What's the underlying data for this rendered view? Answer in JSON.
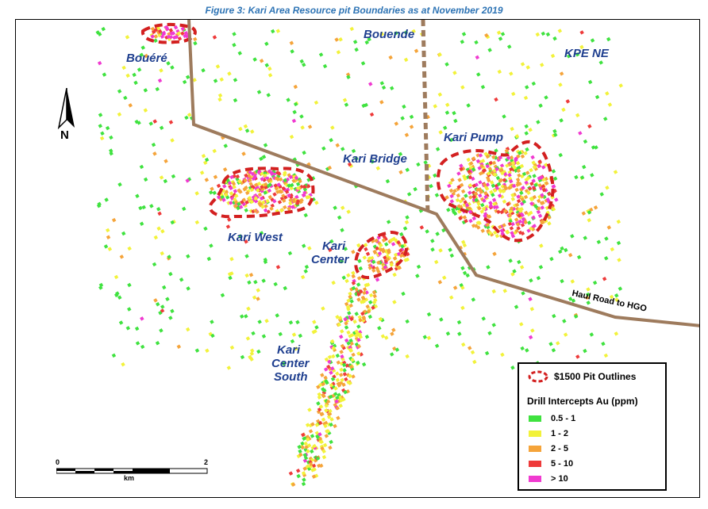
{
  "figure_title": "Figure 3: Kari Area Resource pit Boundaries as at November 2019",
  "labels": {
    "bouere": "Bouéré",
    "bouende": "Bouende",
    "kpe_ne": "KPE NE",
    "kari_pump": "Kari Pump",
    "kari_bridge": "Kari Bridge",
    "kari_west": "Kari West",
    "kari_center_1": "Kari",
    "kari_center_2": "Center",
    "kari_center_south_1": "Kari",
    "kari_center_south_2": "Center",
    "kari_center_south_3": "South",
    "haul_road": "Haul Road to HGO"
  },
  "north_arrow": {
    "letter": "N"
  },
  "scale_bar": {
    "start": "0",
    "end": "2",
    "unit": "km"
  },
  "legend": {
    "pit_label": "$1500 Pit Outlines",
    "pit_color": "#d32020",
    "title": "Drill Intercepts Au (ppm)",
    "items": [
      {
        "label": "0.5 - 1",
        "color": "#3fe23f"
      },
      {
        "label": "1 - 2",
        "color": "#f2f23a"
      },
      {
        "label": "2 - 5",
        "color": "#f5a43a"
      },
      {
        "label": "5 - 10",
        "color": "#ee3a3a"
      },
      {
        "label": "> 10",
        "color": "#f03ad0"
      }
    ]
  },
  "colors": {
    "road": "#9e7b5d",
    "boundary": "#9e7b5d",
    "label_text": "#1f3f8f",
    "title_text": "#2e74b5"
  }
}
